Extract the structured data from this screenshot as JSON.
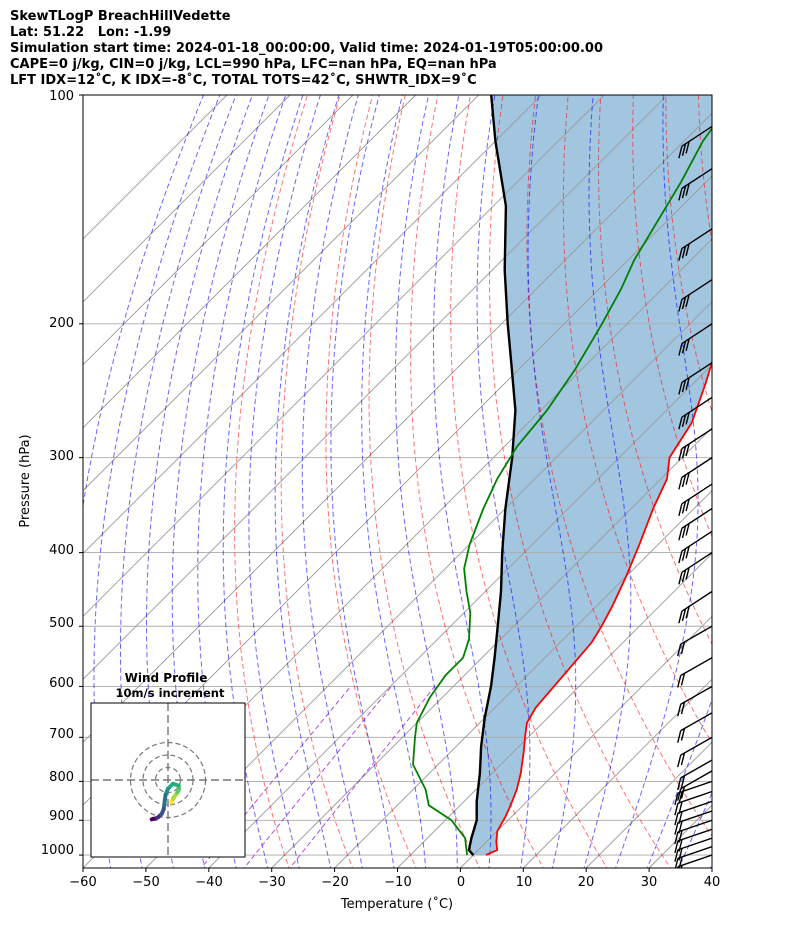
{
  "header": {
    "line1": "SkewTLogP BreachHillVedette",
    "line2": "Lat: 51.22   Lon: -1.99",
    "line3": "Simulation start time: 2024-01-18_00:00:00, Valid time: 2024-01-19T05:00:00.00",
    "line4": "CAPE=0 j/kg, CIN=0 j/kg, LCL=990 hPa, LFC=nan hPa, EQ=nan hPa",
    "line5": "LFT IDX=12˚C, K IDX=-8˚C, TOTAL TOTS=42˚C, SHWTR_IDX=9˚C"
  },
  "colors": {
    "temperature": "#ff0000",
    "dewpoint": "#008000",
    "parcel": "#000000",
    "shade": "#a3c6e0",
    "dry_adiabat": "#ff0000",
    "moist_adiabat": "#0000ff",
    "mixing_ratio": "#9400d3",
    "isotherm": "#999999"
  },
  "chart_data": [
    {
      "type": "line",
      "subtype": "skew-t log-p",
      "xlabel": "Temperature (˚C)",
      "ylabel": "Pressure (hPa)",
      "x_ticks": [
        "−60",
        "−50",
        "−40",
        "−30",
        "−20",
        "−10",
        "0",
        "10",
        "20",
        "30",
        "40"
      ],
      "y_ticks": [
        "100",
        "200",
        "300",
        "400",
        "500",
        "600",
        "700",
        "800",
        "900",
        "1000"
      ],
      "xlim": [
        -60,
        40
      ],
      "ylim": [
        1040,
        100
      ],
      "y_scale": "log",
      "grid": true,
      "series": [
        {
          "role": "temperature",
          "points": [
            [
              2,
              1000
            ],
            [
              3,
              985
            ],
            [
              1.5,
              960
            ],
            [
              0,
              930
            ],
            [
              -1,
              890
            ],
            [
              -2,
              860
            ],
            [
              -3.5,
              820
            ],
            [
              -5.5,
              780
            ],
            [
              -8.5,
              730
            ],
            [
              -10.5,
              700
            ],
            [
              -12.5,
              670
            ],
            [
              -13.5,
              640
            ],
            [
              -14,
              600
            ],
            [
              -14.5,
              560
            ],
            [
              -15,
              525
            ],
            [
              -16,
              500
            ],
            [
              -17.5,
              470
            ],
            [
              -20,
              430
            ],
            [
              -23,
              390
            ],
            [
              -26.5,
              350
            ],
            [
              -29,
              320
            ],
            [
              -32,
              300
            ],
            [
              -34,
              270
            ],
            [
              -38,
              240
            ],
            [
              -42,
              215
            ],
            [
              -46,
              190
            ],
            [
              -51,
              165
            ],
            [
              -57,
              140
            ],
            [
              -63,
              120
            ],
            [
              -67,
              108
            ],
            [
              -70,
              100
            ]
          ]
        },
        {
          "role": "dewpoint",
          "points": [
            [
              -1,
              1000
            ],
            [
              -4,
              950
            ],
            [
              -9,
              900
            ],
            [
              -15,
              860
            ],
            [
              -18,
              820
            ],
            [
              -24,
              760
            ],
            [
              -28,
              700
            ],
            [
              -30,
              670
            ],
            [
              -32,
              620
            ],
            [
              -33,
              580
            ],
            [
              -33,
              550
            ],
            [
              -35,
              520
            ],
            [
              -39,
              480
            ],
            [
              -43,
              450
            ],
            [
              -47,
              420
            ],
            [
              -50,
              390
            ],
            [
              -53.5,
              350
            ],
            [
              -56,
              320
            ],
            [
              -58,
              290
            ],
            [
              -59,
              260
            ],
            [
              -61,
              230
            ],
            [
              -64,
              200
            ],
            [
              -66.5,
              180
            ],
            [
              -69,
              165
            ],
            [
              -71,
              150
            ],
            [
              -74,
              130
            ],
            [
              -77,
              115
            ],
            [
              -79,
              100
            ]
          ]
        },
        {
          "role": "parcel",
          "points": [
            [
              0,
              1000
            ],
            [
              -1.5,
              985
            ],
            [
              -3,
              950
            ],
            [
              -5,
              900
            ],
            [
              -8,
              850
            ],
            [
              -12,
              780
            ],
            [
              -16,
              720
            ],
            [
              -20,
              660
            ],
            [
              -24,
              600
            ],
            [
              -28,
              550
            ],
            [
              -32.5,
              500
            ],
            [
              -37.5,
              450
            ],
            [
              -43.5,
              400
            ],
            [
              -50,
              350
            ],
            [
              -57,
              300
            ],
            [
              -64,
              260
            ],
            [
              -71,
              230
            ],
            [
              -79,
              200
            ],
            [
              -88,
              170
            ],
            [
              -98,
              140
            ],
            [
              -110,
              115
            ],
            [
              -118,
              100
            ]
          ]
        }
      ],
      "wind_barbs_pressure_levels": [
        1000,
        975,
        950,
        925,
        900,
        875,
        850,
        825,
        800,
        775,
        750,
        700,
        650,
        600,
        550,
        500,
        450,
        400,
        375,
        350,
        325,
        300,
        275,
        250,
        225,
        200,
        175,
        150,
        125,
        110
      ]
    },
    {
      "type": "line",
      "subtype": "hodograph",
      "title": "Wind Profile",
      "subtitle": "10m/s increment",
      "rings": [
        10,
        20,
        30
      ],
      "colormap": "viridis",
      "points": [
        [
          2.5,
          -18
        ],
        [
          4,
          -15
        ],
        [
          6,
          -12
        ],
        [
          7.5,
          -10
        ],
        [
          8.8,
          -7.5
        ],
        [
          8.5,
          -4.5
        ],
        [
          4,
          -3
        ],
        [
          0,
          -7
        ],
        [
          -2,
          -12
        ],
        [
          -2.8,
          -18.5
        ],
        [
          -3.5,
          -23.5
        ],
        [
          -5,
          -27
        ],
        [
          -7.5,
          -29.5
        ],
        [
          -10,
          -31
        ],
        [
          -11.5,
          -31
        ],
        [
          -13,
          -31.5
        ]
      ]
    }
  ]
}
